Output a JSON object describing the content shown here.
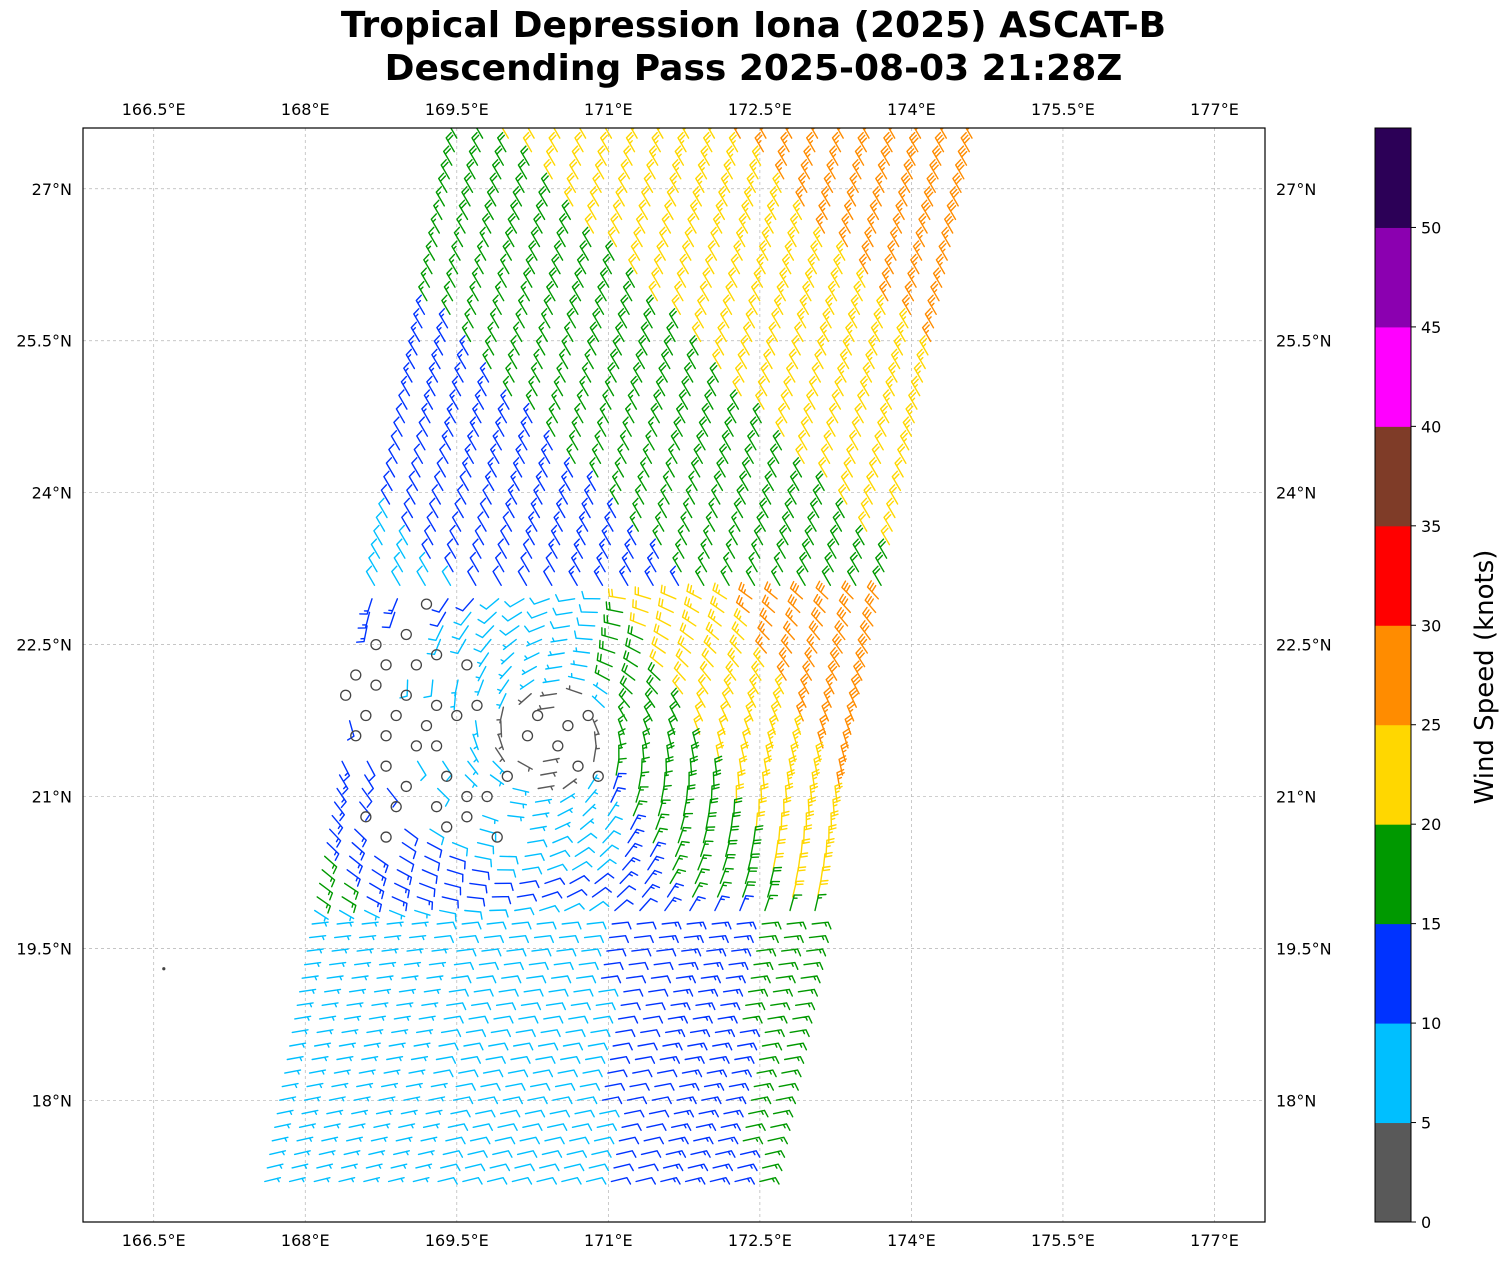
{
  "title": {
    "line1": "Tropical Depression Iona (2025) ASCAT-B",
    "line2": "Descending Pass 2025-08-03 21:28Z"
  },
  "map": {
    "lon_range": [
      165.8,
      177.5
    ],
    "lat_range": [
      16.8,
      27.6
    ],
    "lon_ticks": [
      "166.5°E",
      "168°E",
      "169.5°E",
      "171°E",
      "172.5°E",
      "174°E",
      "175.5°E",
      "177°E"
    ],
    "lon_tick_values": [
      166.5,
      168,
      169.5,
      171,
      172.5,
      174,
      175.5,
      177
    ],
    "lat_ticks": [
      "27°N",
      "25.5°N",
      "24°N",
      "22.5°N",
      "21°N",
      "19.5°N",
      "18°N"
    ],
    "lat_tick_values": [
      27,
      25.5,
      24,
      22.5,
      21,
      19.5,
      18
    ],
    "grid": true,
    "swath_corners": [
      [
        169.5,
        27.5
      ],
      [
        174.6,
        27.5
      ],
      [
        172.5,
        17.2
      ],
      [
        167.6,
        17.2
      ]
    ],
    "circulation_center": [
      170.4,
      21.6
    ],
    "calm_points": [
      [
        169.2,
        22.9
      ],
      [
        168.7,
        22.5
      ],
      [
        169.0,
        22.6
      ],
      [
        169.3,
        22.4
      ],
      [
        168.5,
        22.2
      ],
      [
        168.8,
        22.3
      ],
      [
        169.1,
        22.3
      ],
      [
        169.6,
        22.3
      ],
      [
        168.4,
        22.0
      ],
      [
        168.7,
        22.1
      ],
      [
        169.0,
        22.0
      ],
      [
        169.3,
        21.9
      ],
      [
        168.6,
        21.8
      ],
      [
        168.9,
        21.8
      ],
      [
        169.2,
        21.7
      ],
      [
        169.5,
        21.8
      ],
      [
        168.5,
        21.6
      ],
      [
        168.8,
        21.6
      ],
      [
        169.1,
        21.5
      ],
      [
        169.3,
        21.5
      ],
      [
        169.7,
        21.9
      ],
      [
        170.3,
        21.8
      ],
      [
        170.6,
        21.7
      ],
      [
        170.8,
        21.8
      ],
      [
        168.8,
        21.3
      ],
      [
        169.0,
        21.1
      ],
      [
        169.4,
        21.2
      ],
      [
        169.6,
        21.0
      ],
      [
        170.2,
        21.6
      ],
      [
        170.5,
        21.5
      ],
      [
        170.7,
        21.3
      ],
      [
        170.9,
        21.2
      ],
      [
        168.6,
        20.8
      ],
      [
        168.9,
        20.9
      ],
      [
        169.3,
        20.9
      ],
      [
        169.6,
        20.8
      ],
      [
        169.8,
        21.0
      ],
      [
        169.9,
        20.6
      ],
      [
        168.8,
        20.6
      ],
      [
        169.4,
        20.7
      ],
      [
        170.0,
        21.2
      ]
    ],
    "island": [
      166.6,
      19.3
    ]
  },
  "colorbar": {
    "label": "Wind Speed (knots)",
    "bins": [
      0,
      5,
      10,
      15,
      20,
      25,
      30,
      35,
      40,
      45,
      50,
      55
    ],
    "tick_labels": [
      "0",
      "5",
      "10",
      "15",
      "20",
      "25",
      "30",
      "35",
      "40",
      "45",
      "50"
    ],
    "colors": [
      "#595959",
      "#00bfff",
      "#0033ff",
      "#009900",
      "#ffd700",
      "#ff8c00",
      "#ff0000",
      "#7f3c28",
      "#ff00ff",
      "#8b00b0",
      "#2c0057"
    ]
  }
}
